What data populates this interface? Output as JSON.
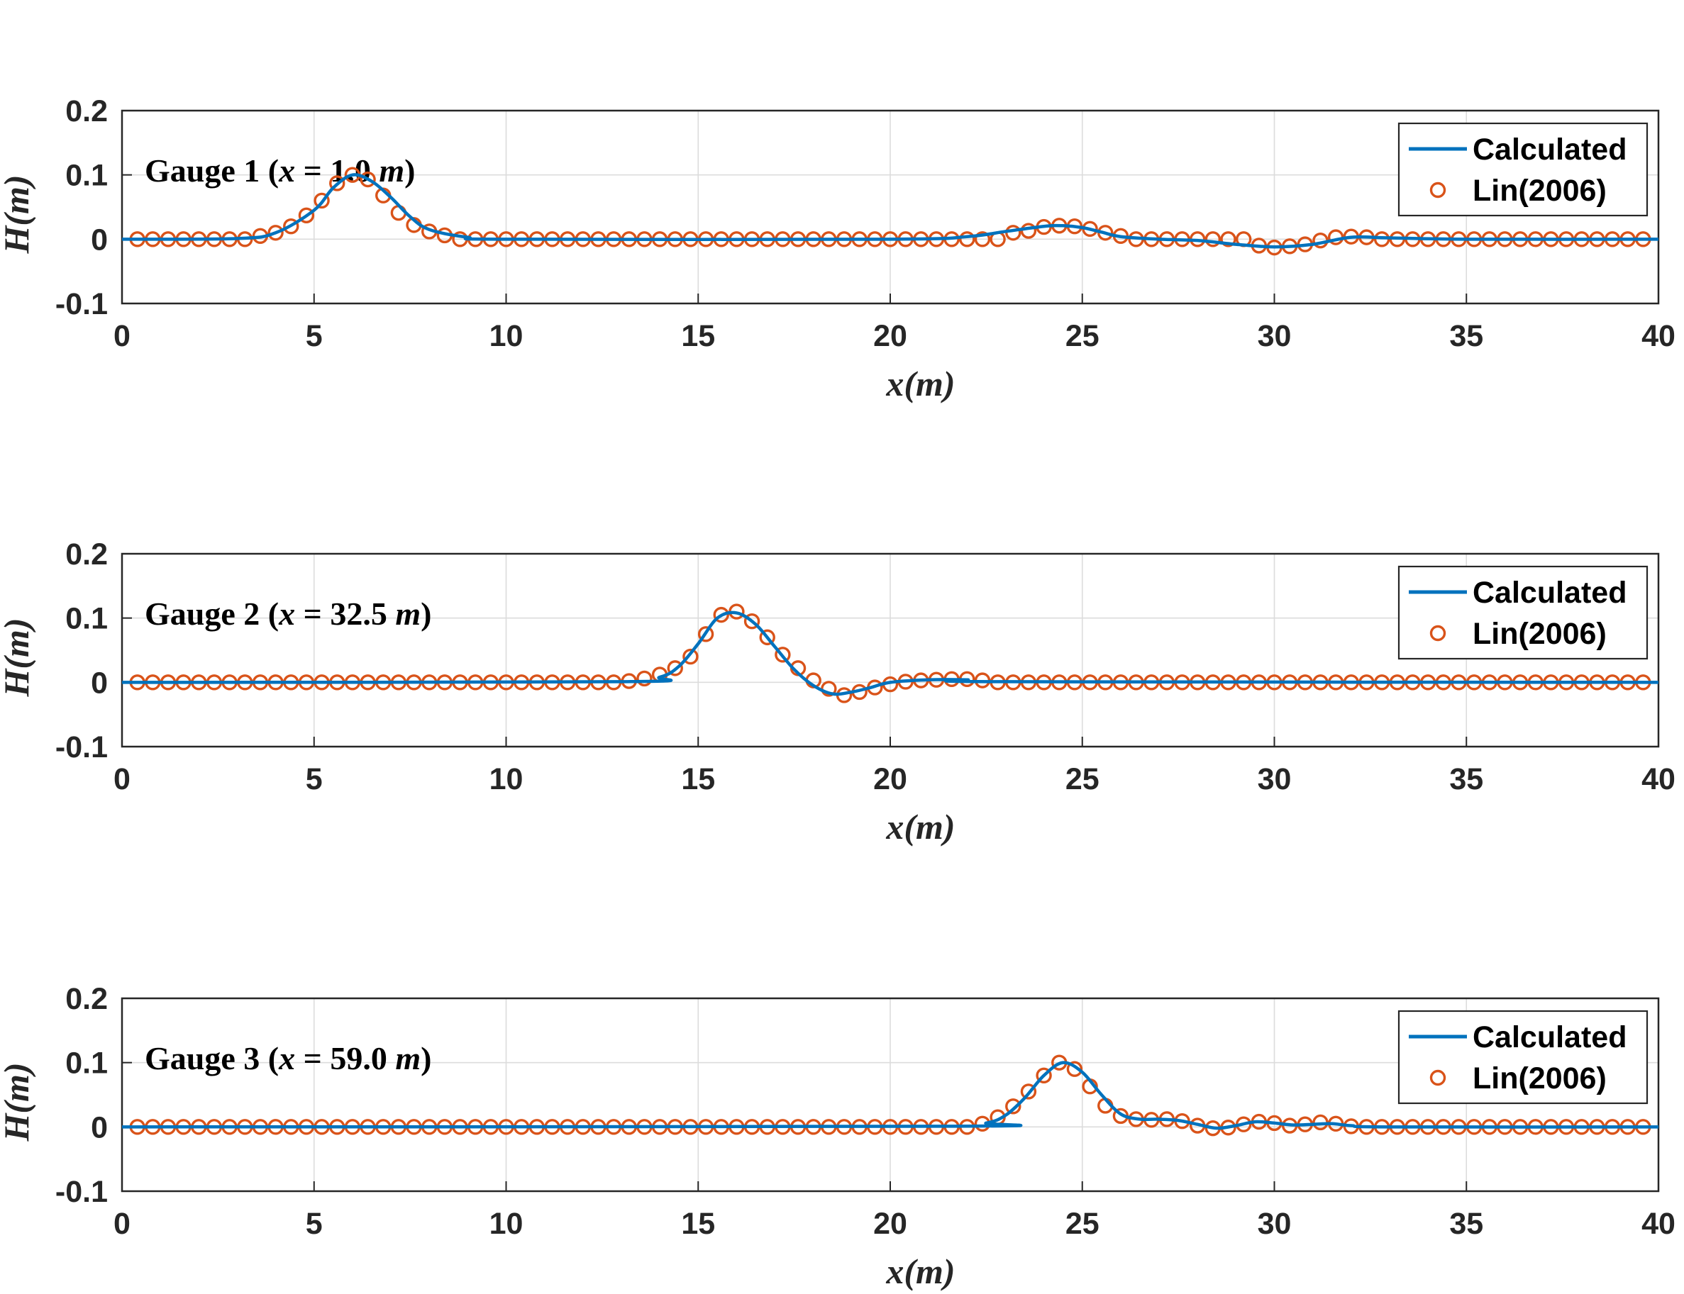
{
  "figure": {
    "x_ticks": [
      "0",
      "5",
      "10",
      "15",
      "20",
      "25",
      "30",
      "35",
      "40"
    ],
    "y_ticks": [
      "0.2",
      "0.1",
      "0",
      "-0.1"
    ]
  },
  "colors": {
    "calculated": "#0072BD",
    "lin2006": "#D95319",
    "axes": "#262626",
    "grid": "#dcdcdc"
  },
  "chart_data": [
    {
      "type": "line",
      "title_prefix": "Gauge 1 (",
      "title_var": "x",
      "title_eq": " = 1.0 ",
      "title_unit": "m",
      "title_close": ")",
      "xlabel": "x(m)",
      "ylabel": "H(m)",
      "xlim": [
        0,
        40
      ],
      "ylim": [
        -0.1,
        0.2
      ],
      "xticks": [
        0,
        5,
        10,
        15,
        20,
        25,
        30,
        35,
        40
      ],
      "yticks": [
        -0.1,
        0,
        0.1,
        0.2
      ],
      "legend": {
        "position": "top-right",
        "entries": [
          "Calculated",
          "Lin(2006)"
        ]
      },
      "grid": true,
      "series": [
        {
          "name": "Calculated",
          "style": "line",
          "x": [
            0,
            3,
            4,
            5,
            5.5,
            6,
            6.5,
            7,
            7.5,
            8,
            9,
            10,
            20,
            22,
            23,
            24,
            24.5,
            25,
            25.5,
            26,
            27,
            28,
            29,
            30,
            31,
            32,
            33,
            35,
            40
          ],
          "y": [
            0,
            0.001,
            0.01,
            0.045,
            0.08,
            0.1,
            0.09,
            0.065,
            0.035,
            0.015,
            0.003,
            0,
            0,
            0.004,
            0.012,
            0.02,
            0.021,
            0.018,
            0.011,
            0.004,
            0,
            -0.002,
            -0.008,
            -0.012,
            -0.008,
            0.003,
            0.002,
            0,
            0
          ]
        },
        {
          "name": "Lin(2006)",
          "style": "marker",
          "x": [
            3.6,
            4,
            4.4,
            4.8,
            5.2,
            5.6,
            6.0,
            6.4,
            6.8,
            7.2,
            7.6,
            8.0,
            8.4,
            23.2,
            23.6,
            24.0,
            24.4,
            24.8,
            25.2,
            25.6,
            26.0,
            29.6,
            30.0,
            30.4,
            30.8,
            31.2,
            31.6,
            32.0,
            32.4
          ],
          "y": [
            0.005,
            0.01,
            0.02,
            0.037,
            0.06,
            0.087,
            0.1,
            0.093,
            0.068,
            0.041,
            0.022,
            0.012,
            0.006,
            0.01,
            0.013,
            0.019,
            0.021,
            0.02,
            0.016,
            0.01,
            0.005,
            -0.01,
            -0.013,
            -0.011,
            -0.008,
            -0.002,
            0.003,
            0.004,
            0.003
          ],
          "baseline_y": 0
        }
      ]
    },
    {
      "type": "line",
      "title_prefix": "Gauge 2 (",
      "title_var": "x",
      "title_eq": " = 32.5 ",
      "title_unit": "m",
      "title_close": ")",
      "xlabel": "x(m)",
      "ylabel": "H(m)",
      "xlim": [
        0,
        40
      ],
      "ylim": [
        -0.1,
        0.2
      ],
      "xticks": [
        0,
        5,
        10,
        15,
        20,
        25,
        30,
        35,
        40
      ],
      "yticks": [
        -0.1,
        0,
        0.1,
        0.2
      ],
      "legend": {
        "position": "top-right",
        "entries": [
          "Calculated",
          "Lin(2006)"
        ]
      },
      "grid": true,
      "series": [
        {
          "name": "Calculated",
          "style": "line",
          "x": [
            0,
            13,
            14,
            14.5,
            15,
            15.5,
            16,
            16.5,
            17,
            17.5,
            18,
            18.5,
            19,
            19.5,
            20,
            21,
            22,
            23,
            40
          ],
          "y": [
            0,
            0.001,
            0.008,
            0.025,
            0.06,
            0.1,
            0.108,
            0.09,
            0.055,
            0.02,
            -0.005,
            -0.018,
            -0.015,
            -0.008,
            0,
            0.004,
            0.004,
            0.001,
            0
          ]
        },
        {
          "name": "Lin(2006)",
          "style": "marker",
          "x": [
            13.2,
            13.6,
            14.0,
            14.4,
            14.8,
            15.2,
            15.6,
            16.0,
            16.4,
            16.8,
            17.2,
            17.6,
            18.0,
            18.4,
            18.8,
            19.2,
            19.6,
            20.0,
            20.4,
            20.8,
            21.2,
            21.6,
            22.0,
            22.4
          ],
          "y": [
            0.002,
            0.006,
            0.012,
            0.022,
            0.04,
            0.075,
            0.105,
            0.11,
            0.095,
            0.07,
            0.043,
            0.022,
            0.003,
            -0.01,
            -0.02,
            -0.015,
            -0.008,
            -0.003,
            0.001,
            0.003,
            0.004,
            0.005,
            0.005,
            0.003
          ],
          "baseline_y": 0
        }
      ]
    },
    {
      "type": "line",
      "title_prefix": "Gauge 3 (",
      "title_var": "x",
      "title_eq": " = 59.0 ",
      "title_unit": "m",
      "title_close": ")",
      "xlabel": "x(m)",
      "ylabel": "H(m)",
      "xlim": [
        0,
        40
      ],
      "ylim": [
        -0.1,
        0.2
      ],
      "xticks": [
        0,
        5,
        10,
        15,
        20,
        25,
        30,
        35,
        40
      ],
      "yticks": [
        -0.1,
        0,
        0.1,
        0.2
      ],
      "legend": {
        "position": "top-right",
        "entries": [
          "Calculated",
          "Lin(2006)"
        ]
      },
      "grid": true,
      "series": [
        {
          "name": "Calculated",
          "style": "line",
          "x": [
            0,
            21.5,
            22.5,
            23,
            23.5,
            24,
            24.5,
            25,
            25.5,
            26,
            26.5,
            27,
            27.5,
            28,
            28.5,
            29,
            29.5,
            30,
            30.5,
            31,
            31.5,
            32,
            33,
            40
          ],
          "y": [
            0,
            0.001,
            0.006,
            0.018,
            0.045,
            0.08,
            0.1,
            0.085,
            0.05,
            0.02,
            0.012,
            0.012,
            0.01,
            0.004,
            -0.002,
            0.002,
            0.008,
            0.006,
            0.003,
            0.004,
            0.005,
            0.002,
            0,
            0
          ]
        },
        {
          "name": "Lin(2006)",
          "style": "marker",
          "x": [
            22.4,
            22.8,
            23.2,
            23.6,
            24.0,
            24.4,
            24.8,
            25.2,
            25.6,
            26.0,
            26.4,
            26.8,
            27.2,
            27.6,
            28.0,
            28.4,
            28.8,
            29.2,
            29.6,
            30.0,
            30.4,
            30.8,
            31.2,
            31.6,
            32.0
          ],
          "y": [
            0.005,
            0.015,
            0.032,
            0.055,
            0.08,
            0.1,
            0.09,
            0.063,
            0.033,
            0.017,
            0.012,
            0.011,
            0.012,
            0.009,
            0.002,
            -0.002,
            -0.001,
            0.004,
            0.008,
            0.006,
            0.002,
            0.004,
            0.007,
            0.005,
            0.001
          ],
          "baseline_y": 0
        }
      ]
    }
  ]
}
